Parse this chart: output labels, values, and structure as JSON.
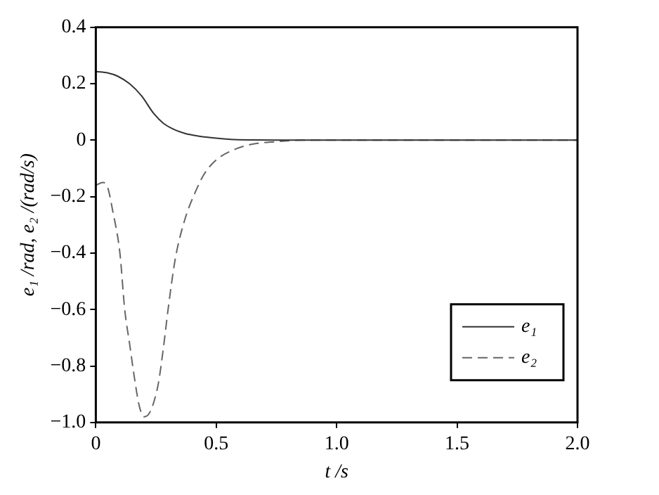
{
  "chart_data": {
    "type": "line",
    "xlabel": "t /s",
    "ylabel": "e₁ /rad, e₂ /(rad/s)",
    "xlim": [
      0,
      2
    ],
    "xticks": [
      {
        "value": 0,
        "label": "0"
      },
      0.5,
      {
        "value": 1,
        "label": "1.0"
      },
      1.5,
      {
        "value": 2,
        "label": "2.0"
      }
    ],
    "ylim": [
      -1,
      0.4
    ],
    "yticks": [
      {
        "value": -1,
        "label": "−1.0"
      },
      {
        "value": -0.8,
        "label": "−0.8"
      },
      {
        "value": -0.6,
        "label": "−0.6"
      },
      {
        "value": -0.4,
        "label": "−0.4"
      },
      {
        "value": -0.2,
        "label": "−0.2"
      },
      0,
      0.2,
      0.4
    ],
    "grid": false,
    "legend": "bottom right",
    "marker": "none",
    "series": [
      {
        "name": "e₁",
        "color": "#333333",
        "line_style": "solid",
        "x": [
          0,
          0.05,
          0.09,
          0.14,
          0.19,
          0.24,
          0.28,
          0.32,
          0.37,
          0.43,
          0.5,
          0.56,
          0.65,
          0.8,
          1,
          1.5,
          2
        ],
        "values": [
          0.243,
          0.238,
          0.227,
          0.2,
          0.157,
          0.095,
          0.06,
          0.04,
          0.024,
          0.014,
          0.007,
          0.003,
          0.001,
          0,
          0,
          0,
          0
        ]
      },
      {
        "name": "e₂",
        "color": "#666666",
        "line_style": "dashed",
        "x": [
          0,
          0.03,
          0.05,
          0.07,
          0.1,
          0.12,
          0.14,
          0.16,
          0.18,
          0.2,
          0.22,
          0.24,
          0.26,
          0.28,
          0.3,
          0.33,
          0.37,
          0.41,
          0.45,
          0.5,
          0.57,
          0.65,
          0.75,
          0.85,
          1,
          1.5,
          2
        ],
        "values": [
          -0.16,
          -0.15,
          -0.17,
          -0.25,
          -0.4,
          -0.6,
          -0.72,
          -0.84,
          -0.94,
          -0.98,
          -0.97,
          -0.93,
          -0.86,
          -0.74,
          -0.6,
          -0.42,
          -0.28,
          -0.19,
          -0.12,
          -0.07,
          -0.035,
          -0.014,
          -0.005,
          0,
          0,
          0,
          0
        ]
      }
    ]
  }
}
